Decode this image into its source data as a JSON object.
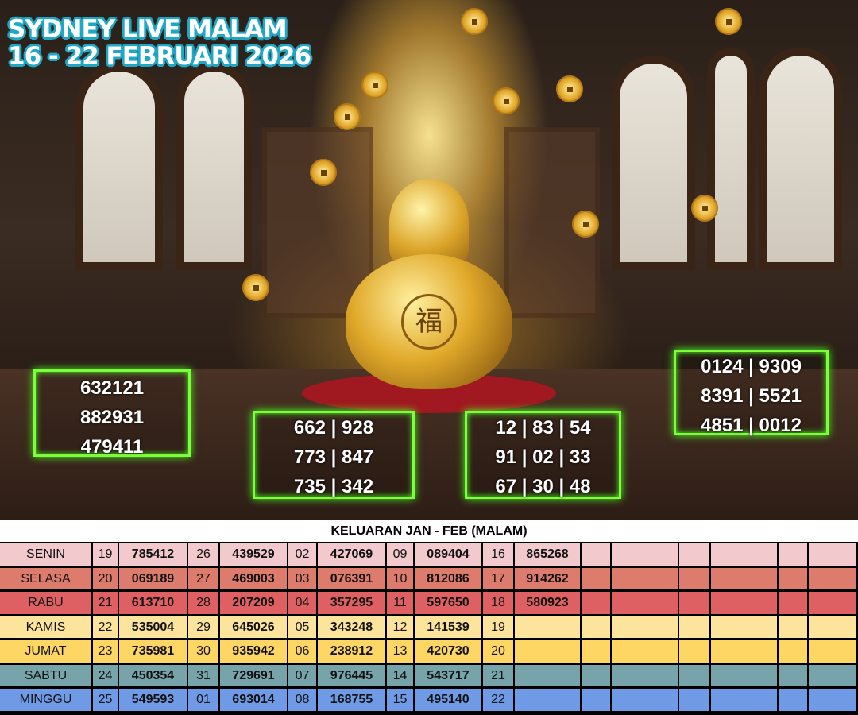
{
  "header": {
    "line1": "SYDNEY LIVE MALAM",
    "line2": "16 - 22 FEBRUARI 2026"
  },
  "prediction_boxes": [
    {
      "lines": [
        "632121",
        "882931",
        "479411"
      ]
    },
    {
      "lines": [
        "662 | 928",
        "773 | 847",
        "735 | 342"
      ]
    },
    {
      "lines": [
        "12 | 83 | 54",
        "91 | 02 | 33",
        "67 | 30 | 48"
      ]
    },
    {
      "lines": [
        "0124 | 9309",
        "8391 | 5521",
        "4851 | 0012"
      ]
    }
  ],
  "results_table": {
    "title": "KELUARAN JAN - FEB (MALAM)",
    "rows": [
      {
        "day": "SENIN",
        "color": "#f2c9cc",
        "cells": [
          "19",
          "785412",
          "26",
          "439529",
          "02",
          "427069",
          "09",
          "089404",
          "16",
          "865268",
          "",
          "",
          "",
          "",
          "",
          ""
        ]
      },
      {
        "day": "SELASA",
        "color": "#dd7b6d",
        "cells": [
          "20",
          "069189",
          "27",
          "469003",
          "03",
          "076391",
          "10",
          "812086",
          "17",
          "914262",
          "",
          "",
          "",
          "",
          "",
          ""
        ]
      },
      {
        "day": "RABU",
        "color": "#df6063",
        "cells": [
          "21",
          "613710",
          "28",
          "207209",
          "04",
          "357295",
          "11",
          "597650",
          "18",
          "580923",
          "",
          "",
          "",
          "",
          "",
          ""
        ]
      },
      {
        "day": "KAMIS",
        "color": "#fde49c",
        "cells": [
          "22",
          "535004",
          "29",
          "645026",
          "05",
          "343248",
          "12",
          "141539",
          "19",
          "",
          "",
          "",
          "",
          "",
          "",
          ""
        ]
      },
      {
        "day": "JUMAT",
        "color": "#fdd663",
        "cells": [
          "23",
          "735981",
          "30",
          "935942",
          "06",
          "238912",
          "13",
          "420730",
          "20",
          "",
          "",
          "",
          "",
          "",
          "",
          ""
        ]
      },
      {
        "day": "SABTU",
        "color": "#77a4ab",
        "cells": [
          "24",
          "450354",
          "31",
          "729691",
          "07",
          "976445",
          "14",
          "543717",
          "21",
          "",
          "",
          "",
          "",
          "",
          "",
          ""
        ]
      },
      {
        "day": "MINGGU",
        "color": "#6f9ae6",
        "cells": [
          "25",
          "549593",
          "01",
          "693014",
          "08",
          "168755",
          "15",
          "495140",
          "22",
          "",
          "",
          "",
          "",
          "",
          "",
          ""
        ]
      }
    ]
  }
}
